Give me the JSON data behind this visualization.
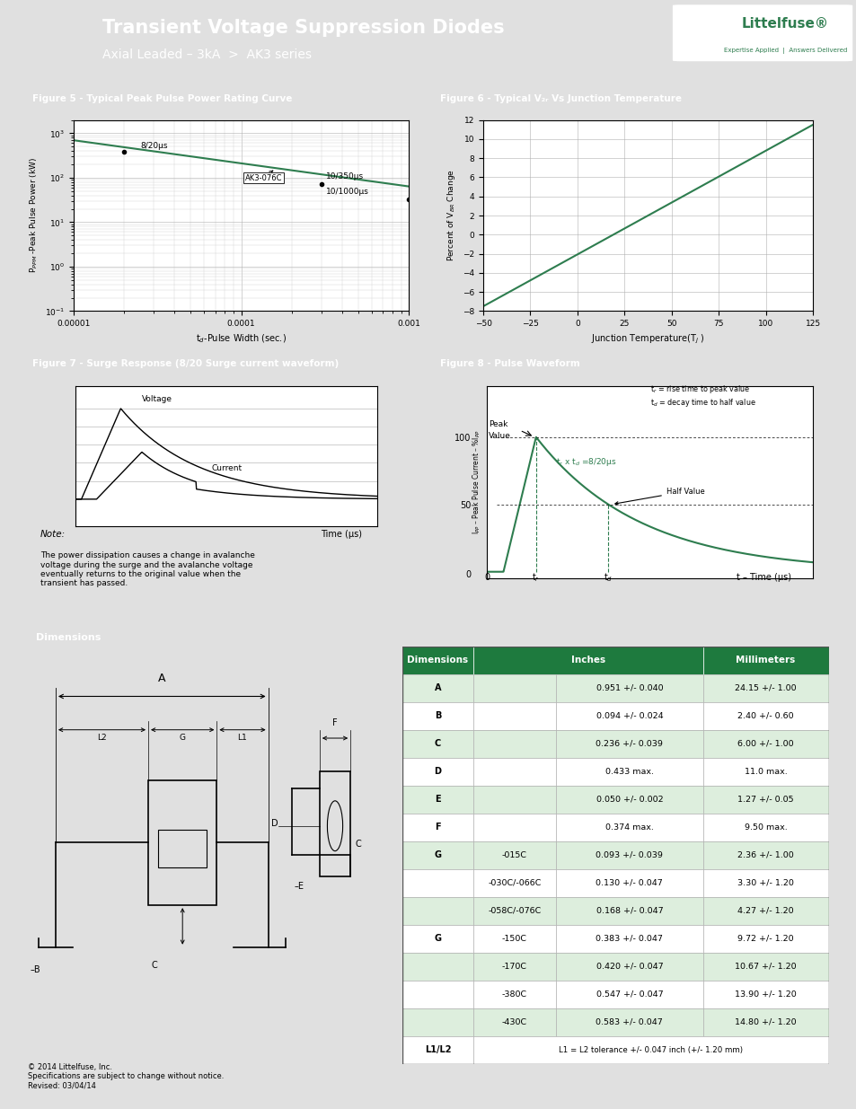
{
  "header_bg": "#2e7d4f",
  "header_title": "Transient Voltage Suppression Diodes",
  "header_subtitle": "Axial Leaded – 3kA  >  AK3 series",
  "header_tagline": "Expertise Applied  |  Answers Delivered",
  "green_mid": "#2e7d4f",
  "green_header": "#1e7a3e",
  "fig5_title": "Figure 5 - Typical Peak Pulse Power Rating Curve",
  "fig6_title": "Figure 6 - Typical V₂ᵣ Vs Junction Temperature",
  "fig7_title": "Figure 7 - Surge Response (8/20 Surge current waveform)",
  "fig8_title": "Figure 8 - Pulse Waveform",
  "dim_title": "Dimensions",
  "footer_text": "© 2014 Littelfuse, Inc.\nSpecifications are subject to change without notice.\nRevised: 03/04/14",
  "bg_color": "#e0e0e0",
  "dim_rows": [
    [
      "A",
      "",
      "0.951 +/- 0.040",
      "24.15 +/- 1.00"
    ],
    [
      "B",
      "",
      "0.094 +/- 0.024",
      "2.40 +/- 0.60"
    ],
    [
      "C",
      "",
      "0.236 +/- 0.039",
      "6.00 +/- 1.00"
    ],
    [
      "D",
      "",
      "0.433 max.",
      "11.0 max."
    ],
    [
      "E",
      "",
      "0.050 +/- 0.002",
      "1.27 +/- 0.05"
    ],
    [
      "F",
      "",
      "0.374 max.",
      "9.50 max."
    ],
    [
      "G",
      "-015C",
      "0.093 +/- 0.039",
      "2.36 +/- 1.00"
    ],
    [
      "",
      "-030C/-066C",
      "0.130 +/- 0.047",
      "3.30 +/- 1.20"
    ],
    [
      "",
      "-058C/-076C",
      "0.168 +/- 0.047",
      "4.27 +/- 1.20"
    ],
    [
      "G",
      "-150C",
      "0.383 +/- 0.047",
      "9.72 +/- 1.20"
    ],
    [
      "",
      "-170C",
      "0.420 +/- 0.047",
      "10.67 +/- 1.20"
    ],
    [
      "",
      "-380C",
      "0.547 +/- 0.047",
      "13.90 +/- 1.20"
    ],
    [
      "",
      "-430C",
      "0.583 +/- 0.047",
      "14.80 +/- 1.20"
    ],
    [
      "L1/L2",
      "L1 = L2 tolerance +/- 0.047 inch (+/- 1.20 mm)",
      "",
      ""
    ]
  ]
}
